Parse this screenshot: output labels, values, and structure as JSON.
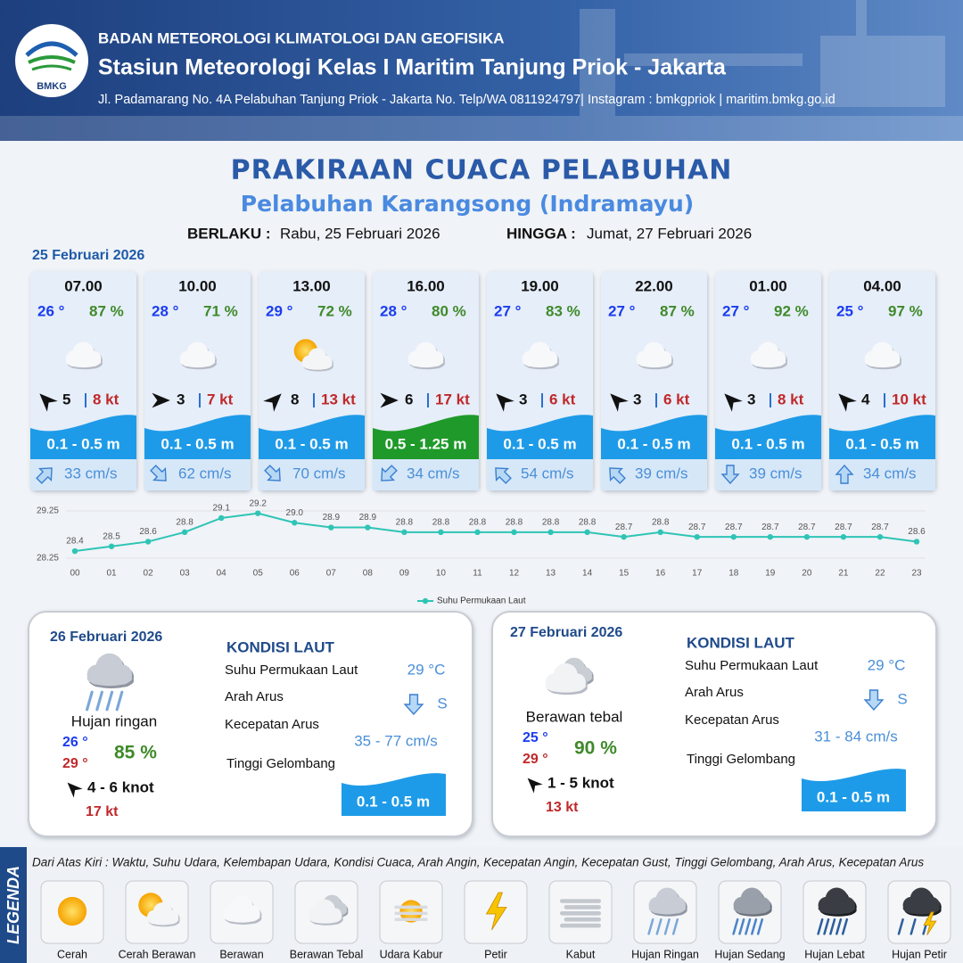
{
  "header": {
    "logo": "BMKG",
    "org": "BADAN METEOROLOGI KLIMATOLOGI DAN GEOFISIKA",
    "station": "Stasiun Meteorologi Kelas I Maritim Tanjung Priok - Jakarta",
    "address": "Jl. Padamarang No. 4A Pelabuhan Tanjung Priok - Jakarta No. Telp/WA 0811924797| Instagram : bmkgpriok | maritim.bmkg.go.id"
  },
  "title": "PRAKIRAAN CUACA PELABUHAN",
  "subtitle": "Pelabuhan Karangsong (Indramayu)",
  "validity": {
    "from_label": "BERLAKU :",
    "from": "Rabu, 25 Februari 2026",
    "to_label": "HINGGA :",
    "to": "Jumat, 27 Februari 2026"
  },
  "day1_date": "25 Februari 2026",
  "cards": [
    {
      "time": "07.00",
      "temp": "26 °",
      "humidity": "87 %",
      "icon": "cloud",
      "wind_arrow": -45,
      "wind": "5",
      "gust": "8 kt",
      "wave": "0.1 - 0.5 m",
      "wave_color": "#1e9be8",
      "current_arrow": 45,
      "current": "33 cm/s"
    },
    {
      "time": "10.00",
      "temp": "28 °",
      "humidity": "71 %",
      "icon": "cloud",
      "wind_arrow": 90,
      "wind": "3",
      "gust": "7 kt",
      "wave": "0.1 - 0.5 m",
      "wave_color": "#1e9be8",
      "current_arrow": 135,
      "current": "62 cm/s"
    },
    {
      "time": "13.00",
      "temp": "29 °",
      "humidity": "72 %",
      "icon": "sun-cloud",
      "wind_arrow": 45,
      "wind": "8",
      "gust": "13 kt",
      "wave": "0.1 - 0.5 m",
      "wave_color": "#1e9be8",
      "current_arrow": 135,
      "current": "70 cm/s"
    },
    {
      "time": "16.00",
      "temp": "28 °",
      "humidity": "80 %",
      "icon": "cloud",
      "wind_arrow": 90,
      "wind": "6",
      "gust": "17 kt",
      "wave": "0.5 - 1.25 m",
      "wave_color": "#1f9a2a",
      "current_arrow": 225,
      "current": "34 cm/s"
    },
    {
      "time": "19.00",
      "temp": "27 °",
      "humidity": "83 %",
      "icon": "cloud",
      "wind_arrow": -45,
      "wind": "3",
      "gust": "6 kt",
      "wave": "0.1 - 0.5 m",
      "wave_color": "#1e9be8",
      "current_arrow": 315,
      "current": "54 cm/s"
    },
    {
      "time": "22.00",
      "temp": "27 °",
      "humidity": "87 %",
      "icon": "cloud",
      "wind_arrow": -45,
      "wind": "3",
      "gust": "6 kt",
      "wave": "0.1 - 0.5 m",
      "wave_color": "#1e9be8",
      "current_arrow": 315,
      "current": "39 cm/s"
    },
    {
      "time": "01.00",
      "temp": "27 °",
      "humidity": "92 %",
      "icon": "cloud",
      "wind_arrow": -45,
      "wind": "3",
      "gust": "8 kt",
      "wave": "0.1 - 0.5 m",
      "wave_color": "#1e9be8",
      "current_arrow": 180,
      "current": "39 cm/s"
    },
    {
      "time": "04.00",
      "temp": "25 °",
      "humidity": "97 %",
      "icon": "cloud",
      "wind_arrow": -45,
      "wind": "4",
      "gust": "10 kt",
      "wave": "0.1 - 0.5 m",
      "wave_color": "#1e9be8",
      "current_arrow": 0,
      "current": "34 cm/s"
    }
  ],
  "chart_data": {
    "type": "line",
    "categories": [
      "00",
      "01",
      "02",
      "03",
      "04",
      "05",
      "06",
      "07",
      "08",
      "09",
      "10",
      "11",
      "12",
      "13",
      "14",
      "15",
      "16",
      "17",
      "18",
      "19",
      "20",
      "21",
      "22",
      "23"
    ],
    "series": [
      {
        "name": "Suhu Permukaan Laut",
        "color": "#2ec4b6",
        "values": [
          28.4,
          28.5,
          28.6,
          28.8,
          29.1,
          29.2,
          29.0,
          28.9,
          28.9,
          28.8,
          28.8,
          28.8,
          28.8,
          28.8,
          28.8,
          28.7,
          28.8,
          28.7,
          28.7,
          28.7,
          28.7,
          28.7,
          28.7,
          28.6
        ],
        "value_labels": [
          "28.4",
          "28.5",
          "28.6",
          "28.8",
          "29.1",
          "29.2",
          "29.0",
          "28.9",
          "28.9",
          "28.8",
          "28.8",
          "28.8",
          "28.8",
          "28.8",
          "28.8",
          "28.7",
          "28.8",
          "28.7",
          "28.7",
          "28.7",
          "28.7",
          "28.7",
          "28.7",
          "28.6"
        ]
      }
    ],
    "ylim": [
      28.25,
      29.25
    ],
    "yticks": [
      28.25,
      29.25
    ],
    "grid": true,
    "legend": "bottom"
  },
  "outlook": [
    {
      "date": "26 Februari 2026",
      "icon": "rain-light",
      "condition": "Hujan ringan",
      "temp_min": "26 °",
      "temp_max": "29 °",
      "humidity": "85 %",
      "wind_arrow": -45,
      "wind": "4  - 6 knot",
      "gust": "17 kt",
      "sea_heading": "KONDISI LAUT",
      "sst_label": "Suhu Permukaan Laut",
      "sst": "29 °C",
      "current_dir_label": "Arah Arus",
      "current_arrow": 180,
      "current_dir": "S",
      "current_speed_label": "Kecepatan Arus",
      "current_speed": "35 - 77 cm/s",
      "wave_label": "Tinggi Gelombang",
      "wave": "0.1 - 0.5 m"
    },
    {
      "date": "27 Februari 2026",
      "icon": "cloud-thick",
      "condition": "Berawan tebal",
      "temp_min": "25 °",
      "temp_max": "29 °",
      "humidity": "90 %",
      "wind_arrow": -45,
      "wind": "1 - 5 knot",
      "gust": "13 kt",
      "sea_heading": "KONDISI LAUT",
      "sst_label": "Suhu Permukaan Laut",
      "sst": "29 °C",
      "current_dir_label": "Arah Arus",
      "current_arrow": 180,
      "current_dir": "S",
      "current_speed_label": "Kecepatan Arus",
      "current_speed": "31 - 84 cm/s",
      "wave_label": "Tinggi Gelombang",
      "wave": "0.1 - 0.5 m"
    }
  ],
  "legend": {
    "title": "LEGENDA",
    "description": "Dari Atas Kiri : Waktu, Suhu Udara, Kelembapan Udara, Kondisi Cuaca, Arah Angin, Kecepatan Angin, Kecepatan Gust, Tinggi Gelombang, Arah Arus, Kecepatan Arus",
    "items": [
      {
        "label": "Cerah",
        "icon": "sun"
      },
      {
        "label": "Cerah Berawan",
        "icon": "sun-cloud"
      },
      {
        "label": "Berawan",
        "icon": "cloud"
      },
      {
        "label": "Berawan Tebal",
        "icon": "cloud-thick"
      },
      {
        "label": "Udara Kabur",
        "icon": "haze"
      },
      {
        "label": "Petir",
        "icon": "thunder"
      },
      {
        "label": "Kabut",
        "icon": "fog"
      },
      {
        "label": "Hujan Ringan",
        "icon": "rain-light"
      },
      {
        "label": "Hujan Sedang",
        "icon": "rain-mod"
      },
      {
        "label": "Hujan Lebat",
        "icon": "rain-heavy"
      },
      {
        "label": "Hujan Petir",
        "icon": "rain-thunder"
      }
    ]
  }
}
